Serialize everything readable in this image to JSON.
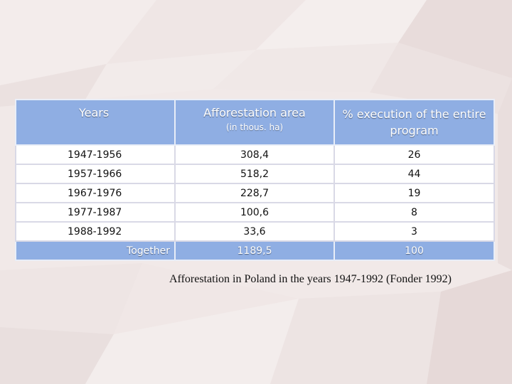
{
  "table": {
    "headers": {
      "years": "Years",
      "area": "Afforestation area",
      "area_unit": "(in thous. ha)",
      "percent": "% execution of the entire program"
    },
    "rows": [
      {
        "years": "1947-1956",
        "area": "308,4",
        "percent": "26"
      },
      {
        "years": "1957-1966",
        "area": "518,2",
        "percent": "44"
      },
      {
        "years": "1967-1976",
        "area": "228,7",
        "percent": "19"
      },
      {
        "years": "1977-1987",
        "area": "100,6",
        "percent": "8"
      },
      {
        "years": "1988-1992",
        "area": "33,6",
        "percent": "3"
      }
    ],
    "total": {
      "label": "Together",
      "area": "1189,5",
      "percent": "100"
    }
  },
  "caption": "Afforestation in Poland in the years 1947-1992 (Fonder 1992)",
  "colors": {
    "header_bg": "#8faee3",
    "header_text": "#ffffff",
    "background": "#f1e9e8"
  }
}
